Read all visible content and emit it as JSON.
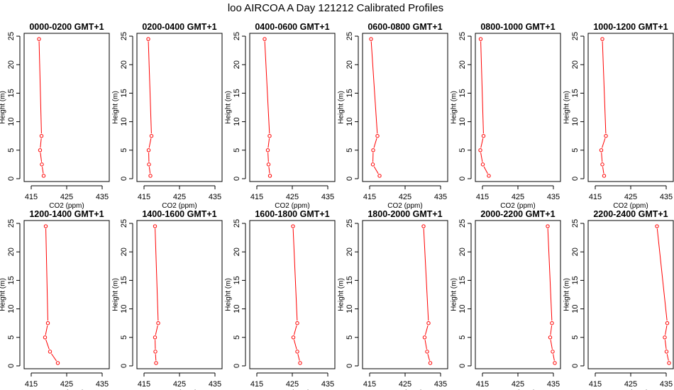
{
  "figure_title": "loo AIRCOA A  Day 121212  Calibrated Profiles",
  "colors": {
    "line": "#ff0000",
    "points": "#ff0000",
    "frame": "#000000",
    "background": "#ffffff"
  },
  "chart_data": [
    {
      "type": "line",
      "title": "0000-0200 GMT+1",
      "xlabel": "CO2 (ppm)",
      "ylabel": "Height (m)",
      "xlim": [
        413,
        437
      ],
      "ylim": [
        -0.5,
        25.5
      ],
      "xticks": [
        415,
        425,
        435
      ],
      "yticks": [
        0,
        5,
        10,
        15,
        20,
        25
      ],
      "grid": false,
      "series": [
        {
          "x": [
            418.5,
            418.0,
            417.5,
            417.9,
            417.2
          ],
          "y": [
            0.5,
            2.5,
            5.0,
            7.5,
            24.5
          ]
        }
      ]
    },
    {
      "type": "line",
      "title": "0200-0400 GMT+1",
      "xlabel": "CO2 (ppm)",
      "ylabel": "Height (m)",
      "xlim": [
        413,
        437
      ],
      "ylim": [
        -0.5,
        25.5
      ],
      "xticks": [
        415,
        425,
        435
      ],
      "yticks": [
        0,
        5,
        10,
        15,
        20,
        25
      ],
      "grid": false,
      "series": [
        {
          "x": [
            416.8,
            416.4,
            416.3,
            417.1,
            416.2
          ],
          "y": [
            0.5,
            2.5,
            5.0,
            7.5,
            24.5
          ]
        }
      ]
    },
    {
      "type": "line",
      "title": "0400-0600 GMT+1",
      "xlabel": "CO2 (ppm)",
      "ylabel": "Height (m)",
      "xlim": [
        413,
        437
      ],
      "ylim": [
        -0.5,
        25.5
      ],
      "xticks": [
        415,
        425,
        435
      ],
      "yticks": [
        0,
        5,
        10,
        15,
        20,
        25
      ],
      "grid": false,
      "series": [
        {
          "x": [
            418.7,
            418.3,
            418.1,
            418.6,
            417.2
          ],
          "y": [
            0.5,
            2.5,
            5.0,
            7.5,
            24.5
          ]
        }
      ]
    },
    {
      "type": "line",
      "title": "0600-0800 GMT+1",
      "xlabel": "CO2 (ppm)",
      "ylabel": "Height (m)",
      "xlim": [
        413,
        437
      ],
      "ylim": [
        -0.5,
        25.5
      ],
      "xticks": [
        415,
        425,
        435
      ],
      "yticks": [
        0,
        5,
        10,
        15,
        20,
        25
      ],
      "grid": false,
      "series": [
        {
          "x": [
            417.8,
            415.9,
            416.0,
            417.2,
            415.4
          ],
          "y": [
            0.5,
            2.5,
            5.0,
            7.5,
            24.5
          ]
        }
      ]
    },
    {
      "type": "line",
      "title": "0800-1000 GMT+1",
      "xlabel": "CO2 (ppm)",
      "ylabel": "Height (m)",
      "xlim": [
        413,
        437
      ],
      "ylim": [
        -0.5,
        25.5
      ],
      "xticks": [
        415,
        425,
        435
      ],
      "yticks": [
        0,
        5,
        10,
        15,
        20,
        25
      ],
      "grid": false,
      "series": [
        {
          "x": [
            416.8,
            415.1,
            414.4,
            415.3,
            414.5
          ],
          "y": [
            0.5,
            2.5,
            5.0,
            7.5,
            24.5
          ]
        }
      ]
    },
    {
      "type": "line",
      "title": "1000-1200 GMT+1",
      "xlabel": "CO2 (ppm)",
      "ylabel": "Height (m)",
      "xlim": [
        413,
        437
      ],
      "ylim": [
        -0.5,
        25.5
      ],
      "xticks": [
        415,
        425,
        435
      ],
      "yticks": [
        0,
        5,
        10,
        15,
        20,
        25
      ],
      "grid": false,
      "series": [
        {
          "x": [
            417.5,
            417.0,
            416.7,
            418.0,
            417.0
          ],
          "y": [
            0.5,
            2.5,
            5.0,
            7.5,
            24.5
          ]
        }
      ]
    },
    {
      "type": "line",
      "title": "1200-1400 GMT+1",
      "xlabel": "CO2 (ppm)",
      "ylabel": "Height (m)",
      "xlim": [
        413,
        437
      ],
      "ylim": [
        -0.5,
        25.5
      ],
      "xticks": [
        415,
        425,
        435
      ],
      "yticks": [
        0,
        5,
        10,
        15,
        20,
        25
      ],
      "grid": false,
      "series": [
        {
          "x": [
            422.5,
            420.3,
            418.9,
            419.7,
            419.1
          ],
          "y": [
            0.5,
            2.5,
            5.0,
            7.5,
            24.5
          ]
        }
      ]
    },
    {
      "type": "line",
      "title": "1400-1600 GMT+1",
      "xlabel": "CO2 (ppm)",
      "ylabel": "Height (m)",
      "xlim": [
        413,
        437
      ],
      "ylim": [
        -0.5,
        25.5
      ],
      "xticks": [
        415,
        425,
        435
      ],
      "yticks": [
        0,
        5,
        10,
        15,
        20,
        25
      ],
      "grid": false,
      "series": [
        {
          "x": [
            418.4,
            418.2,
            418.1,
            419.0,
            418.1
          ],
          "y": [
            0.5,
            2.5,
            5.0,
            7.5,
            24.5
          ]
        }
      ]
    },
    {
      "type": "line",
      "title": "1600-1800 GMT+1",
      "xlabel": "CO2 (ppm)",
      "ylabel": "Height (m)",
      "xlim": [
        413,
        437
      ],
      "ylim": [
        -0.5,
        25.5
      ],
      "xticks": [
        415,
        425,
        435
      ],
      "yticks": [
        0,
        5,
        10,
        15,
        20,
        25
      ],
      "grid": false,
      "series": [
        {
          "x": [
            427.2,
            426.4,
            425.3,
            426.4,
            425.2
          ],
          "y": [
            0.5,
            2.5,
            5.0,
            7.5,
            24.5
          ]
        }
      ]
    },
    {
      "type": "line",
      "title": "1800-2000 GMT+1",
      "xlabel": "CO2 (ppm)",
      "ylabel": "Height (m)",
      "xlim": [
        413,
        437
      ],
      "ylim": [
        -0.5,
        25.5
      ],
      "xticks": [
        415,
        425,
        435
      ],
      "yticks": [
        0,
        5,
        10,
        15,
        20,
        25
      ],
      "grid": false,
      "series": [
        {
          "x": [
            432.1,
            431.2,
            430.5,
            431.6,
            430.2
          ],
          "y": [
            0.5,
            2.5,
            5.0,
            7.5,
            24.5
          ]
        }
      ]
    },
    {
      "type": "line",
      "title": "2000-2200 GMT+1",
      "xlabel": "CO2 (ppm)",
      "ylabel": "Height (m)",
      "xlim": [
        413,
        437
      ],
      "ylim": [
        -0.5,
        25.5
      ],
      "xticks": [
        415,
        425,
        435
      ],
      "yticks": [
        0,
        5,
        10,
        15,
        20,
        25
      ],
      "grid": false,
      "series": [
        {
          "x": [
            435.4,
            434.8,
            434.1,
            434.6,
            433.4
          ],
          "y": [
            0.5,
            2.5,
            5.0,
            7.5,
            24.5
          ]
        }
      ]
    },
    {
      "type": "line",
      "title": "2200-2400 GMT+1",
      "xlabel": "CO2 (ppm)",
      "ylabel": "Height (m)",
      "xlim": [
        413,
        437
      ],
      "ylim": [
        -0.5,
        25.5
      ],
      "xticks": [
        415,
        425,
        435
      ],
      "yticks": [
        0,
        5,
        10,
        15,
        20,
        25
      ],
      "grid": false,
      "series": [
        {
          "x": [
            435.8,
            435.1,
            434.6,
            435.3,
            432.4
          ],
          "y": [
            0.5,
            2.5,
            5.0,
            7.5,
            24.5
          ]
        }
      ]
    }
  ]
}
